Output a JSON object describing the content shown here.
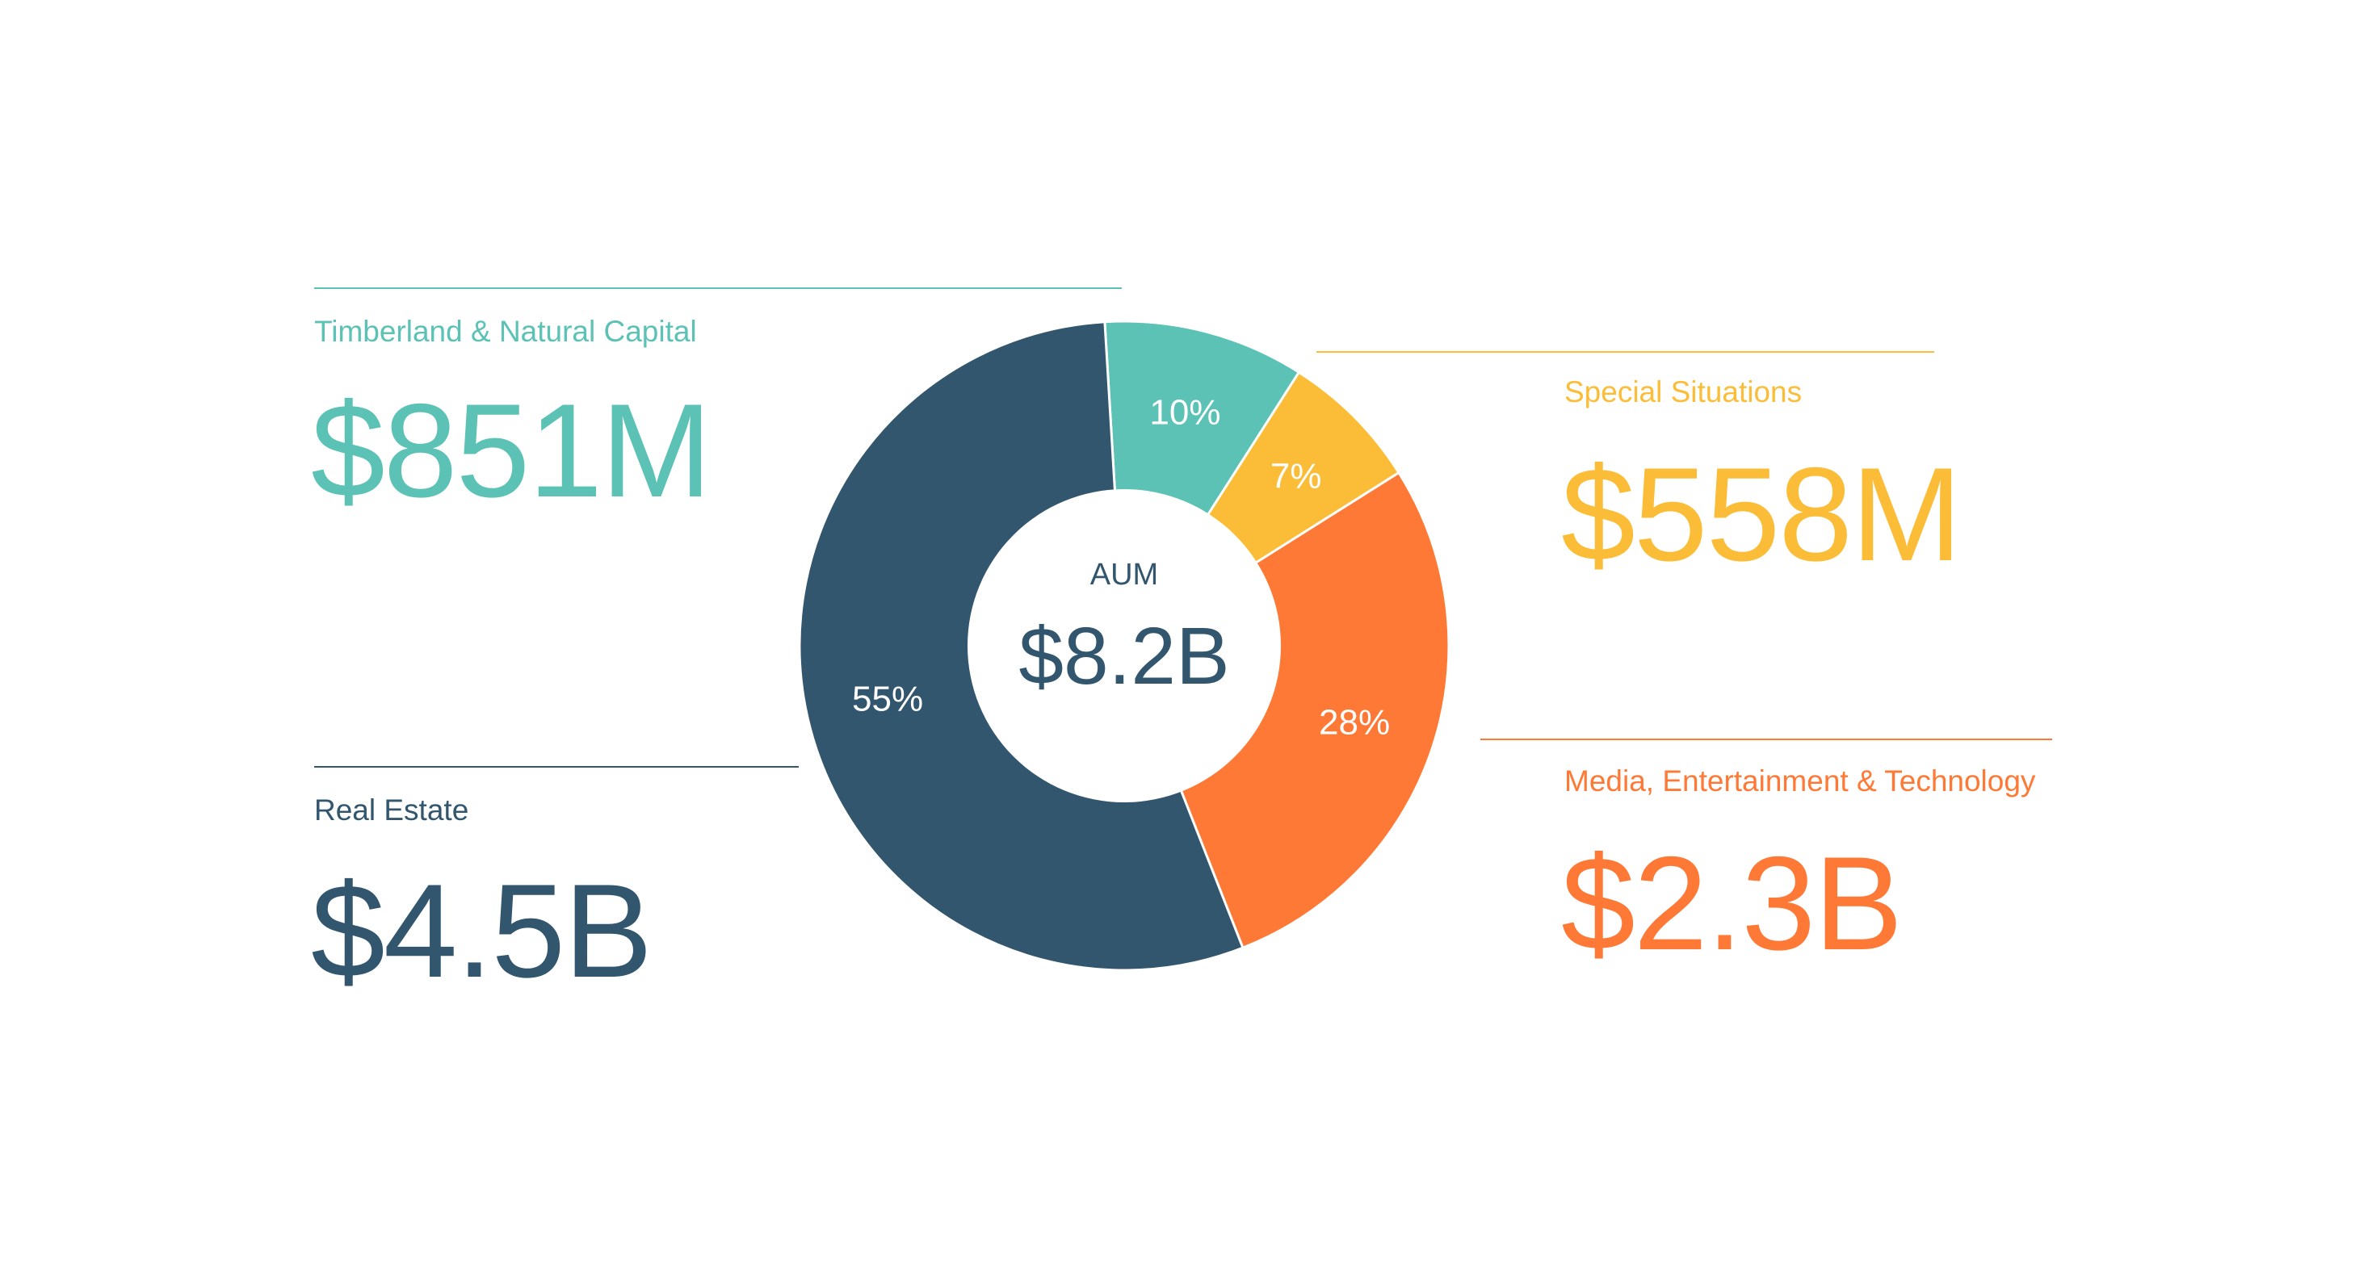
{
  "colors": {
    "teal": "#5bc2b5",
    "yellow": "#fbbd37",
    "orange": "#fe7935",
    "navy": "#33566f"
  },
  "groups": [
    {
      "label": "Timberland & Natural Capital",
      "value": "$851M",
      "color": "#5bc2b5"
    },
    {
      "label": "Special Situations",
      "value": "$558M",
      "color": "#fbbd37"
    },
    {
      "label": "Real Estate",
      "value": "$4.5B",
      "color": "#33566f"
    },
    {
      "label": "Media, Entertainment & Technology",
      "value": "$2.3B",
      "color": "#fe7935"
    }
  ],
  "chart_data": {
    "type": "pie",
    "variant": "donut",
    "center_label": "AUM",
    "center_value": "$8.2B",
    "slices": [
      {
        "category": "Timberland & Natural Capital",
        "value": 10,
        "label": "10%",
        "color": "#5bc2b5"
      },
      {
        "category": "Special Situations",
        "value": 7,
        "label": "7%",
        "color": "#fbbd37"
      },
      {
        "category": "Media, Entertainment & Technology",
        "value": 28,
        "label": "28%",
        "color": "#fe7935"
      },
      {
        "category": "Real Estate",
        "value": 55,
        "label": "55%",
        "color": "#33566f"
      }
    ]
  }
}
